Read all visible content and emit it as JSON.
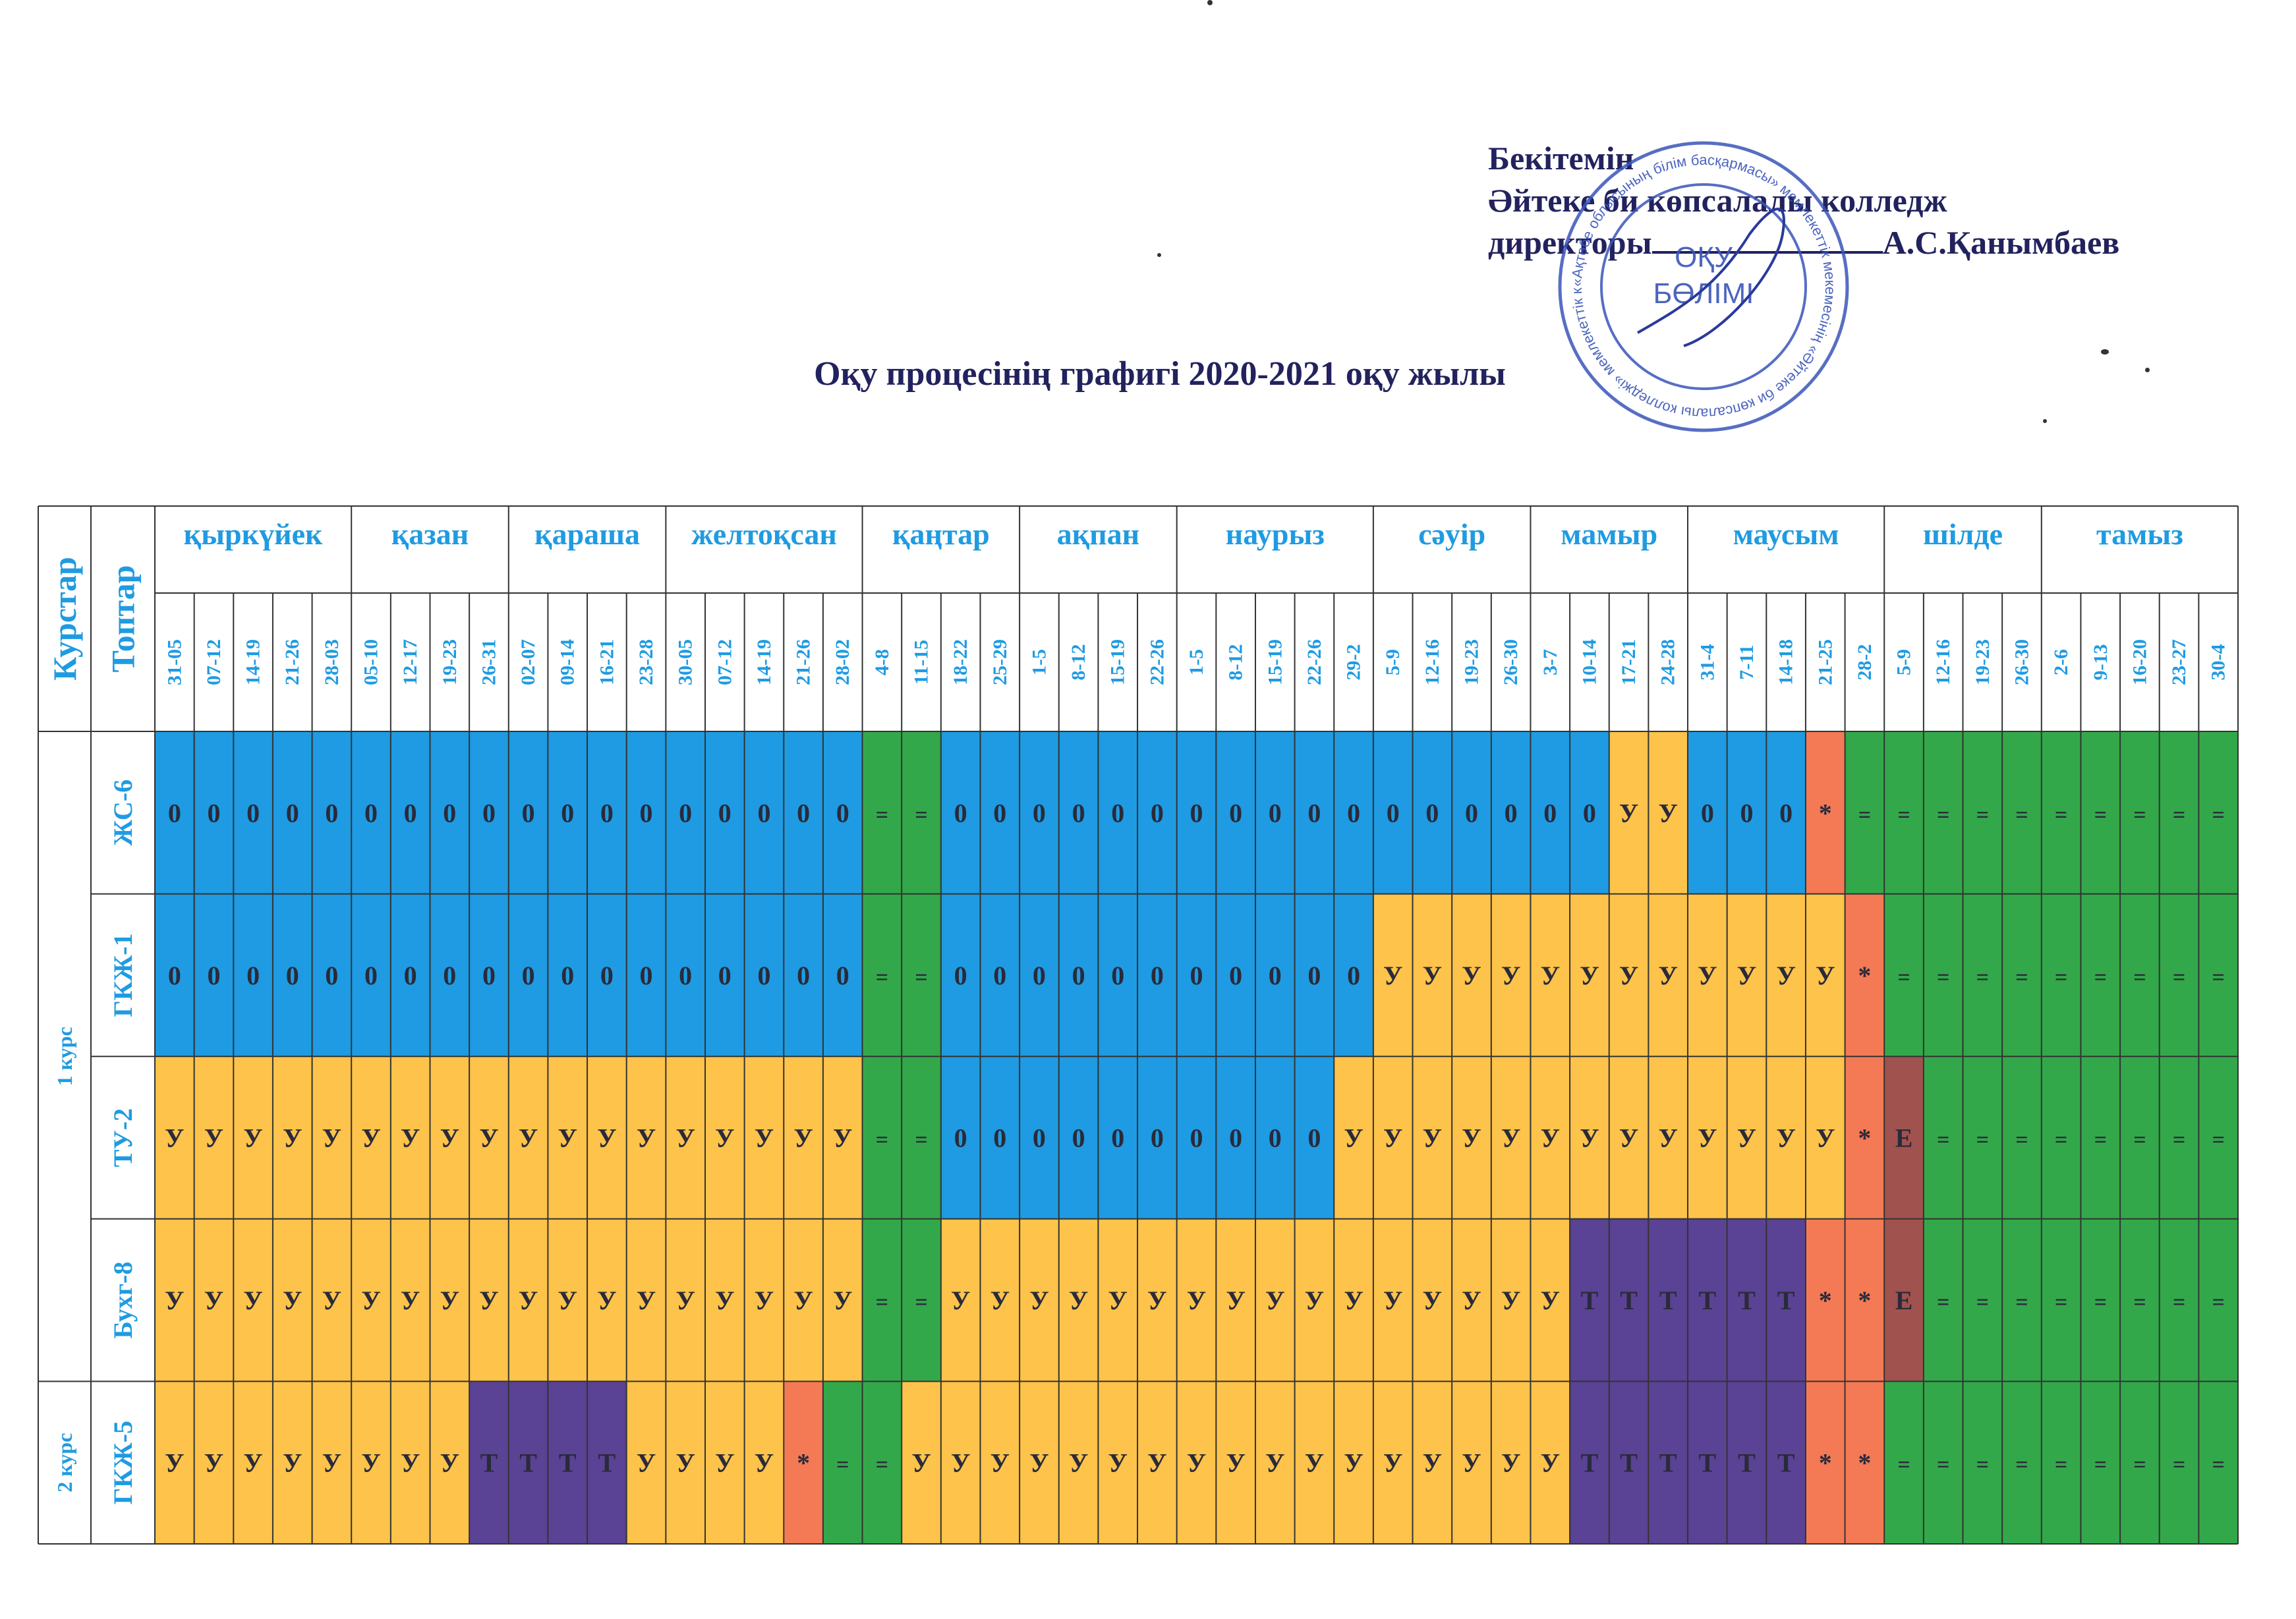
{
  "approval": {
    "line1": "Бекітемін",
    "line2": "Әйтеке би көпсалалы колледж",
    "line3_prefix": "директоры",
    "signer": "А.С.Қанымбаев"
  },
  "stamp": {
    "outer_text": "«Ақтөбе облысының білім басқармасы» мемлекеттік мекемесінің «Әйтеке би көпсалалы колледжі» мемлекеттік коммуналдық қазыналық кәсіпорны",
    "center_line1": "ОҚУ",
    "center_line2": "БӨЛІМІ"
  },
  "title": "Оқу процесінің графигі 2020-2021 оқу жылы",
  "table": {
    "header_course": "Курстар",
    "header_group": "Топтар",
    "months": [
      {
        "name": "қыркүйек",
        "weeks": [
          "31-05",
          "07-12",
          "14-19",
          "21-26",
          "28-03"
        ]
      },
      {
        "name": "қазан",
        "weeks": [
          "05-10",
          "12-17",
          "19-23",
          "26-31"
        ]
      },
      {
        "name": "қараша",
        "weeks": [
          "02-07",
          "09-14",
          "16-21",
          "23-28"
        ]
      },
      {
        "name": "желтоқсан",
        "weeks": [
          "30-05",
          "07-12",
          "14-19",
          "21-26",
          "28-02"
        ]
      },
      {
        "name": "қаңтар",
        "weeks": [
          "4-8",
          "11-15",
          "18-22",
          "25-29"
        ]
      },
      {
        "name": "ақпан",
        "weeks": [
          "1-5",
          "8-12",
          "15-19",
          "22-26"
        ]
      },
      {
        "name": "наурыз",
        "weeks": [
          "1-5",
          "8-12",
          "15-19",
          "22-26",
          "29-2"
        ]
      },
      {
        "name": "сәуір",
        "weeks": [
          "5-9",
          "12-16",
          "19-23",
          "26-30"
        ]
      },
      {
        "name": "мамыр",
        "weeks": [
          "3-7",
          "10-14",
          "17-21",
          "24-28"
        ]
      },
      {
        "name": "маусым",
        "weeks": [
          "31-4",
          "7-11",
          "14-18",
          "21-25",
          "28-2"
        ]
      },
      {
        "name": "шілде",
        "weeks": [
          "5-9",
          "12-16",
          "19-23",
          "26-30"
        ]
      },
      {
        "name": "тамыз",
        "weeks": [
          "2-6",
          "9-13",
          "16-20",
          "23-27",
          "30-4"
        ]
      }
    ],
    "courses": [
      {
        "label": "1 курс",
        "rows": 4
      },
      {
        "label": "2 курс",
        "rows": 1
      }
    ],
    "groups": [
      {
        "name": "ЖС-6",
        "cells": "OOOOOOOOOOOOOOOOOO==OOOOOOOOOOOOOOOOOYYOOO*=========="
      },
      {
        "name": "ГКЖ-1",
        "cells": "OOOOOOOOOOOOOOOOOO==OOOOOOOOOOOYYYYYYYYYYYY*=========="
      },
      {
        "name": "ТУ-2",
        "cells": "YYYYYYYYYYYYYYYYYY==OOOOOOOOOOYYYYYYYYYYYYY*E========="
      },
      {
        "name": "Бухг-8",
        "cells": "YYYYYYYYYYYYYYYYYY==YYYYYYYYYYYYYYYYTTTTTT**E========="
      },
      {
        "name": "ГКЖ-5",
        "cells": "YYYYYYYYTTTTYYYY*==YYYYYYYYYYYYYYYYYTTTTTT**=========="
      }
    ],
    "symbols": {
      "O": "0",
      "Y": "У",
      "T": "Т",
      "=": "=",
      "*": "*",
      "E": "Е"
    },
    "colors": {
      "O": "#1e9be2",
      "Y": "#fdc34a",
      "T": "#5a4294",
      "=": "#33a84a",
      "*": "#f47a55",
      "E": "#a0524e",
      "header_text": "#1f9be2",
      "symbol_text": "#2a2a3a",
      "grid": "#333333"
    }
  }
}
